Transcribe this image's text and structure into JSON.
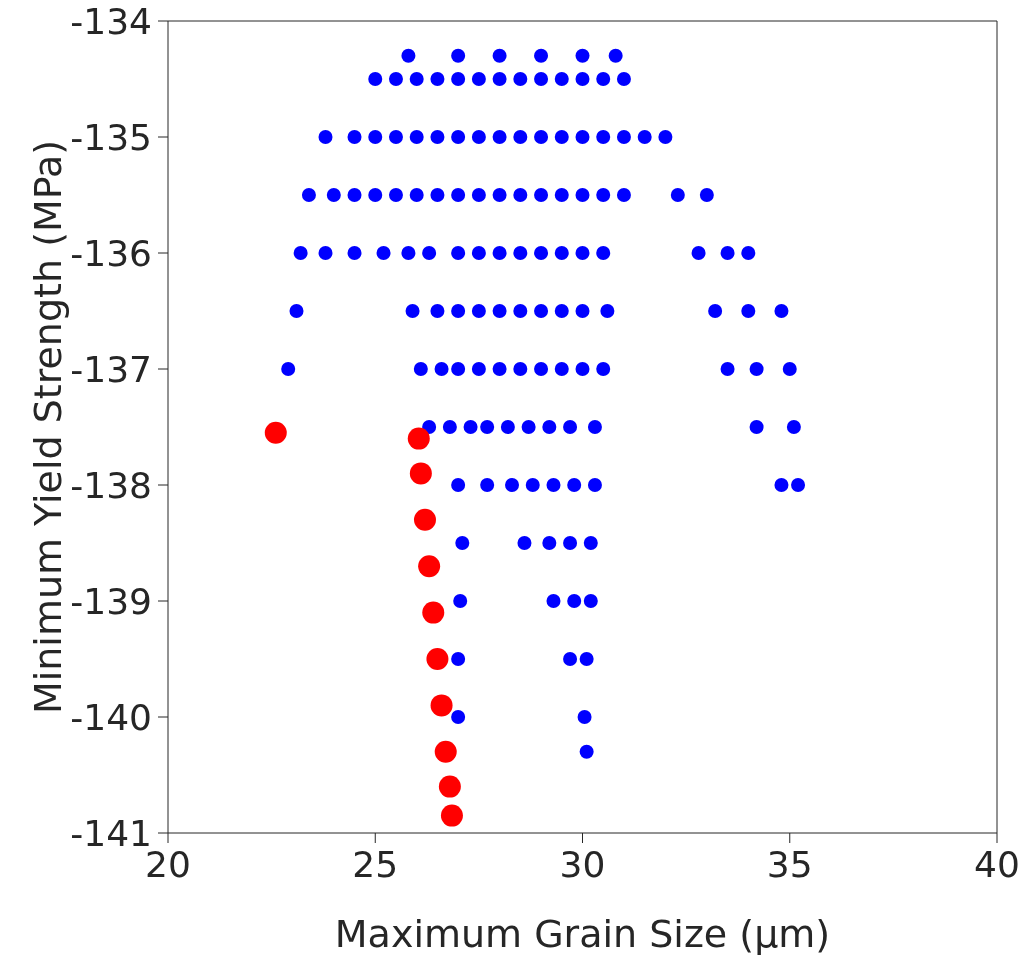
{
  "chart_data": {
    "type": "scatter",
    "xlabel": "Maximum Grain Size (μm)",
    "ylabel": "Minimum Yield Strength (MPa)",
    "xlim": [
      20,
      40
    ],
    "xticks": [
      20,
      25,
      30,
      35,
      40
    ],
    "ylim": [
      -141,
      -134
    ],
    "yticks": [
      -141,
      -140,
      -139,
      -138,
      -137,
      -136,
      -135,
      -134
    ],
    "grid": false,
    "legend": false,
    "marker": "circle",
    "series": [
      {
        "color": "#0000ff",
        "x": [
          25.8,
          27,
          28,
          29,
          30,
          30.8,
          25,
          25.5,
          26,
          26.5,
          27,
          27.5,
          28,
          28.5,
          29,
          29.5,
          30,
          30.5,
          31,
          23.8,
          24.5,
          25,
          25.5,
          26,
          26.5,
          27,
          27.5,
          28,
          28.5,
          29,
          29.5,
          30,
          30.5,
          31,
          31.5,
          32,
          23.4,
          24,
          24.5,
          25,
          25.5,
          26,
          26.5,
          27,
          27.5,
          28,
          28.5,
          29,
          29.5,
          30,
          30.5,
          31,
          32.3,
          33,
          23.2,
          23.8,
          24.5,
          25.2,
          25.8,
          26.3,
          27,
          27.5,
          28,
          28.5,
          29,
          29.5,
          30,
          30.5,
          32.8,
          33.5,
          34,
          23.1,
          25.9,
          26.5,
          27,
          27.5,
          28,
          28.5,
          29,
          29.5,
          30,
          30.6,
          33.2,
          34,
          34.8,
          22.9,
          26.1,
          26.6,
          27,
          27.5,
          28,
          28.5,
          29,
          29.5,
          30,
          30.5,
          33.5,
          34.2,
          35,
          26.3,
          26.8,
          27.3,
          27.7,
          28.2,
          28.7,
          29.2,
          29.7,
          30.3,
          34.2,
          35.1,
          27,
          27.7,
          28.3,
          28.8,
          29.3,
          29.8,
          30.3,
          34.8,
          35.2,
          27.1,
          28.6,
          29.2,
          29.7,
          30.2,
          27.05,
          29.3,
          29.8,
          30.2,
          27,
          29.7,
          30.1,
          27,
          30.05,
          30.1
        ],
        "values": [
          -134.3,
          -134.3,
          -134.3,
          -134.3,
          -134.3,
          -134.3,
          -134.5,
          -134.5,
          -134.5,
          -134.5,
          -134.5,
          -134.5,
          -134.5,
          -134.5,
          -134.5,
          -134.5,
          -134.5,
          -134.5,
          -134.5,
          -135,
          -135,
          -135,
          -135,
          -135,
          -135,
          -135,
          -135,
          -135,
          -135,
          -135,
          -135,
          -135,
          -135,
          -135,
          -135,
          -135,
          -135.5,
          -135.5,
          -135.5,
          -135.5,
          -135.5,
          -135.5,
          -135.5,
          -135.5,
          -135.5,
          -135.5,
          -135.5,
          -135.5,
          -135.5,
          -135.5,
          -135.5,
          -135.5,
          -135.5,
          -135.5,
          -136,
          -136,
          -136,
          -136,
          -136,
          -136,
          -136,
          -136,
          -136,
          -136,
          -136,
          -136,
          -136,
          -136,
          -136,
          -136,
          -136,
          -136.5,
          -136.5,
          -136.5,
          -136.5,
          -136.5,
          -136.5,
          -136.5,
          -136.5,
          -136.5,
          -136.5,
          -136.5,
          -136.5,
          -136.5,
          -136.5,
          -137,
          -137,
          -137,
          -137,
          -137,
          -137,
          -137,
          -137,
          -137,
          -137,
          -137,
          -137,
          -137,
          -137,
          -137.5,
          -137.5,
          -137.5,
          -137.5,
          -137.5,
          -137.5,
          -137.5,
          -137.5,
          -137.5,
          -137.5,
          -137.5,
          -138,
          -138,
          -138,
          -138,
          -138,
          -138,
          -138,
          -138,
          -138,
          -138.5,
          -138.5,
          -138.5,
          -138.5,
          -138.5,
          -139,
          -139,
          -139,
          -139,
          -139.5,
          -139.5,
          -139.5,
          -140,
          -140,
          -140.3
        ]
      },
      {
        "color": "#ff0000",
        "x": [
          22.6,
          26.05,
          26.1,
          26.2,
          26.3,
          26.4,
          26.5,
          26.6,
          26.7,
          26.8,
          26.85
        ],
        "values": [
          -137.55,
          -137.6,
          -137.9,
          -138.3,
          -138.7,
          -139.1,
          -139.5,
          -139.9,
          -140.3,
          -140.6,
          -140.85
        ]
      }
    ]
  }
}
